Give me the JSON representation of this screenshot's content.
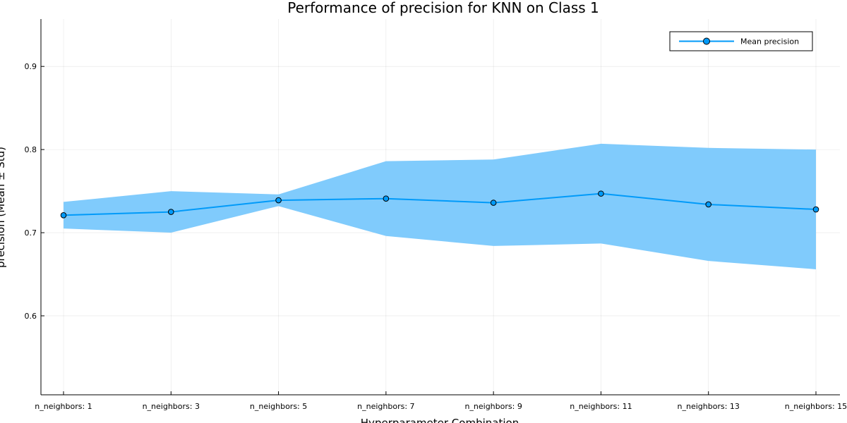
{
  "chart_data": {
    "type": "line",
    "title": "Performance of precision for KNN on Class 1",
    "xlabel": "Hyperparameter Combination",
    "ylabel": "precision (Mean ± Std)",
    "categories": [
      "n_neighbors: 1",
      "n_neighbors: 3",
      "n_neighbors: 5",
      "n_neighbors: 7",
      "n_neighbors: 9",
      "n_neighbors: 11",
      "n_neighbors: 13",
      "n_neighbors: 15"
    ],
    "series": [
      {
        "name": "Mean precision",
        "values": [
          0.721,
          0.725,
          0.739,
          0.741,
          0.736,
          0.747,
          0.734,
          0.728
        ],
        "std": [
          0.016,
          0.025,
          0.007,
          0.045,
          0.052,
          0.06,
          0.068,
          0.072
        ]
      }
    ],
    "ylim": [
      0.505,
      0.957
    ],
    "yticks": [
      0.6,
      0.7,
      0.8,
      0.9
    ],
    "ytick_labels": [
      "0.6",
      "0.7",
      "0.8",
      "0.9"
    ],
    "grid": true,
    "legend_position": "top-right",
    "colors": {
      "line": "#009af9",
      "band": "#80cbfc",
      "marker_edge": "#000000"
    }
  }
}
